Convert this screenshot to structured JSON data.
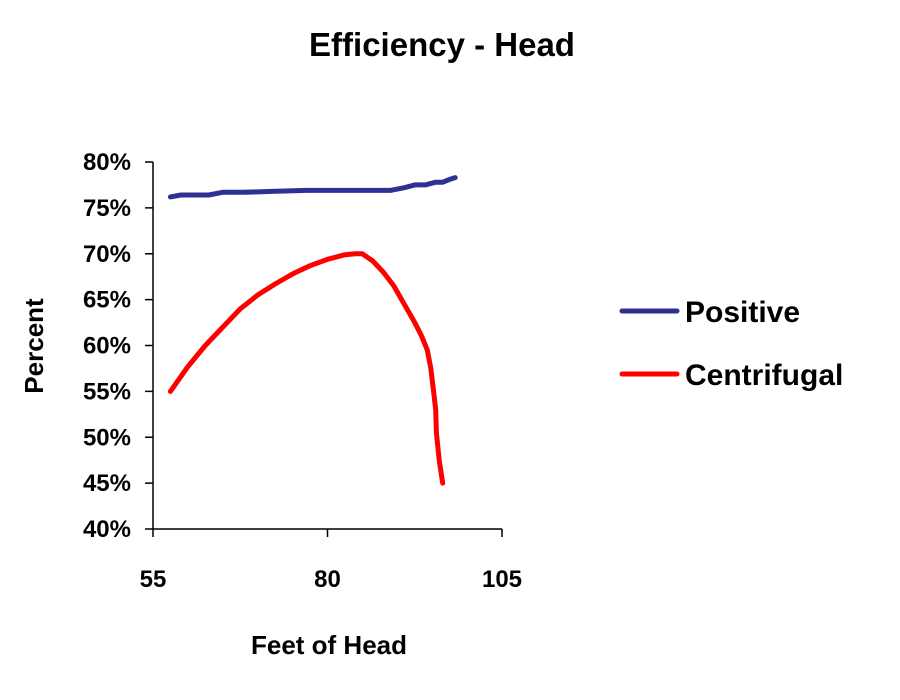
{
  "chart_data": {
    "type": "line",
    "title": "Efficiency - Head",
    "xlabel": "Feet of Head",
    "ylabel": "Percent",
    "xlim": [
      55,
      105
    ],
    "ylim": [
      40,
      80
    ],
    "x_ticks": [
      "55",
      "80",
      "105"
    ],
    "x_tick_values": [
      55,
      80,
      105
    ],
    "y_ticks": [
      "40%",
      "45%",
      "50%",
      "55%",
      "60%",
      "65%",
      "70%",
      "75%",
      "80%"
    ],
    "y_tick_values": [
      40,
      45,
      50,
      55,
      60,
      65,
      70,
      75,
      80
    ],
    "grid": false,
    "legend_position": "right",
    "series": [
      {
        "name": "Positive",
        "color": "#2e3192",
        "points": [
          [
            57.5,
            76.2
          ],
          [
            59,
            76.4
          ],
          [
            61,
            76.4
          ],
          [
            63,
            76.4
          ],
          [
            65,
            76.7
          ],
          [
            68,
            76.7
          ],
          [
            72,
            76.8
          ],
          [
            77,
            76.9
          ],
          [
            82,
            76.9
          ],
          [
            87,
            76.9
          ],
          [
            89,
            76.9
          ],
          [
            91,
            77.2
          ],
          [
            92.5,
            77.5
          ],
          [
            94,
            77.5
          ],
          [
            95.5,
            77.8
          ],
          [
            96.5,
            77.8
          ],
          [
            97.5,
            78.1
          ],
          [
            98.3,
            78.3
          ]
        ]
      },
      {
        "name": "Centrifugal",
        "color": "#ff0000",
        "points": [
          [
            57.5,
            55
          ],
          [
            60,
            57.7
          ],
          [
            62.5,
            60
          ],
          [
            65,
            62
          ],
          [
            67.5,
            64
          ],
          [
            70,
            65.5
          ],
          [
            72.5,
            66.7
          ],
          [
            75,
            67.8
          ],
          [
            77.5,
            68.7
          ],
          [
            80,
            69.4
          ],
          [
            82.5,
            69.9
          ],
          [
            84,
            70
          ],
          [
            85,
            70
          ],
          [
            86.5,
            69.2
          ],
          [
            88,
            68
          ],
          [
            89.5,
            66.5
          ],
          [
            91,
            64.5
          ],
          [
            92.5,
            62.5
          ],
          [
            93.5,
            61
          ],
          [
            94.3,
            59.5
          ],
          [
            94.8,
            57.5
          ],
          [
            95.2,
            55
          ],
          [
            95.5,
            53
          ],
          [
            95.6,
            50.5
          ],
          [
            96.0,
            47.5
          ],
          [
            96.5,
            45
          ]
        ]
      }
    ]
  }
}
